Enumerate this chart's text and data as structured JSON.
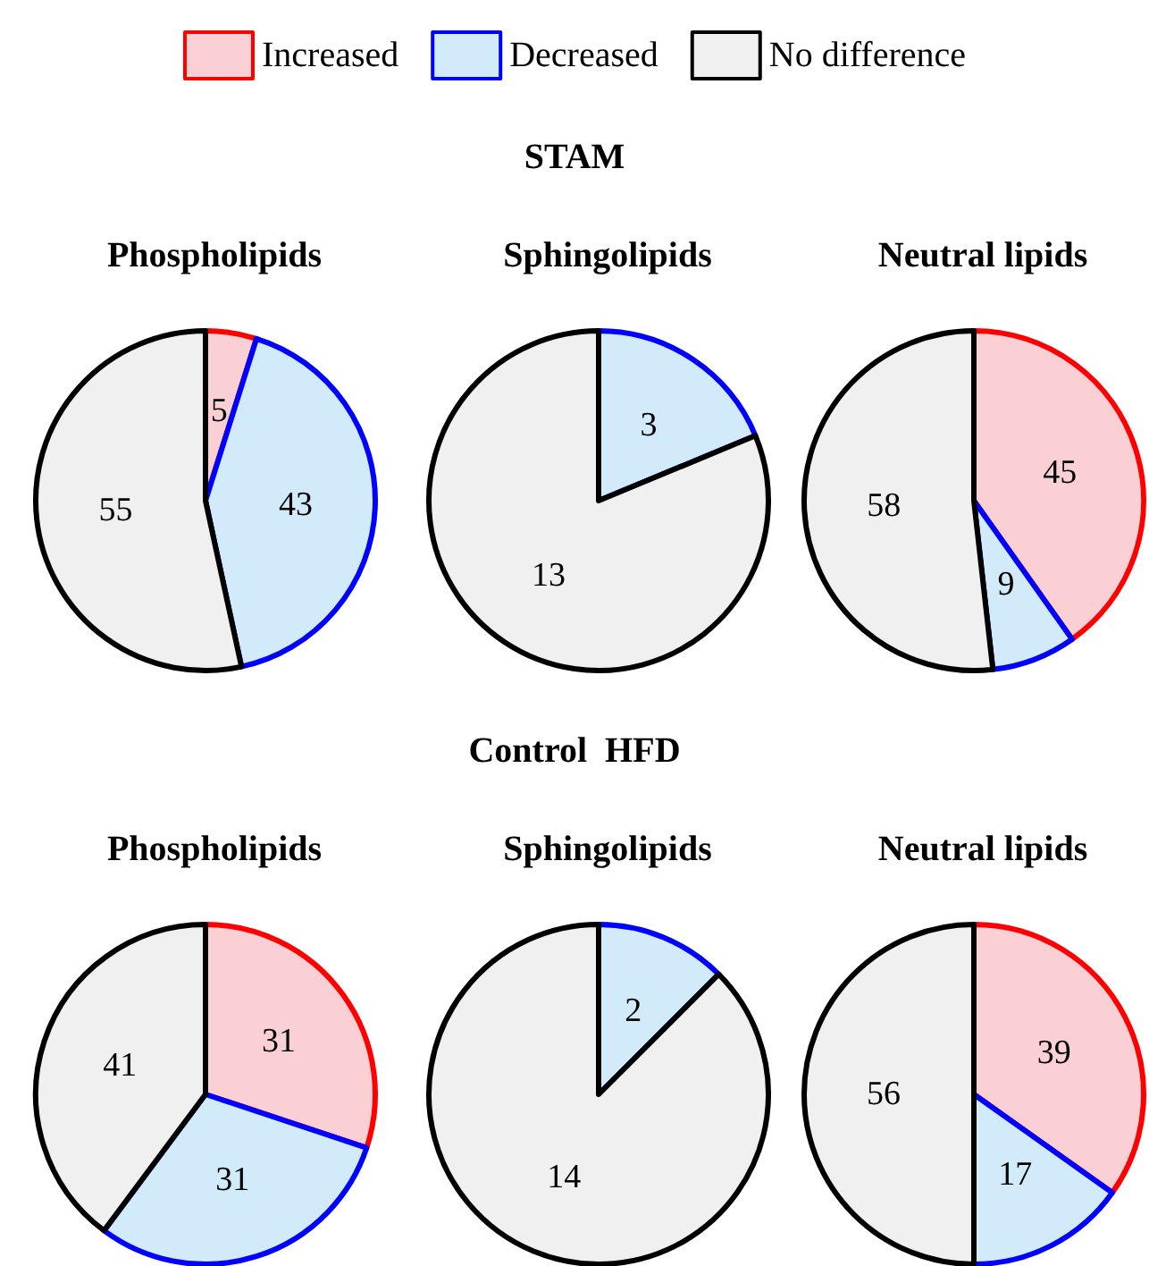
{
  "chart_data": [
    {
      "type": "pie",
      "title": "Phospholipids",
      "annotations": [
        "STAM"
      ],
      "legend": "top",
      "categories": [
        "Increased",
        "Decreased",
        "No difference"
      ],
      "values": [
        5,
        43,
        55
      ],
      "value_labels": [
        "5",
        "43",
        "55"
      ],
      "colors": [
        "#fbd0d4",
        "#d2ebfb",
        "#f0f0f0"
      ]
    },
    {
      "type": "pie",
      "title": "Sphingolipids",
      "categories": [
        null,
        null,
        null
      ],
      "values": [
        0,
        3,
        13
      ],
      "value_labels": [
        null,
        "3",
        "13"
      ],
      "colors": [
        "#fbd0d4",
        "#d2ebfb",
        "#f0f0f0"
      ]
    },
    {
      "type": "pie",
      "title": "Neutral lipids",
      "categories": [
        null,
        null,
        null
      ],
      "values": [
        45,
        9,
        58
      ],
      "value_labels": [
        "45",
        "9",
        "58"
      ],
      "colors": [
        "#fbd0d4",
        "#d2ebfb",
        "#f0f0f0"
      ]
    },
    {
      "type": "pie",
      "title": "Phospholipids",
      "annotations": [
        "Control  HFD"
      ],
      "categories": [
        null,
        null,
        null
      ],
      "values": [
        31,
        31,
        41
      ],
      "value_labels": [
        "31",
        "31",
        "41"
      ],
      "colors": [
        "#fbd0d4",
        "#d2ebfb",
        "#f0f0f0"
      ]
    },
    {
      "type": "pie",
      "title": "Sphingolipids",
      "categories": [
        null,
        null,
        null
      ],
      "values": [
        0,
        2,
        14
      ],
      "value_labels": [
        null,
        "2",
        "14"
      ],
      "colors": [
        "#fbd0d4",
        "#d2ebfb",
        "#f0f0f0"
      ]
    },
    {
      "type": "pie",
      "title": "Neutral lipids",
      "categories": [
        null,
        null,
        null
      ],
      "values": [
        39,
        17,
        56
      ],
      "value_labels": [
        "39",
        "17",
        "56"
      ],
      "colors": [
        "#fbd0d4",
        "#d2ebfb",
        "#f0f0f0"
      ]
    }
  ]
}
